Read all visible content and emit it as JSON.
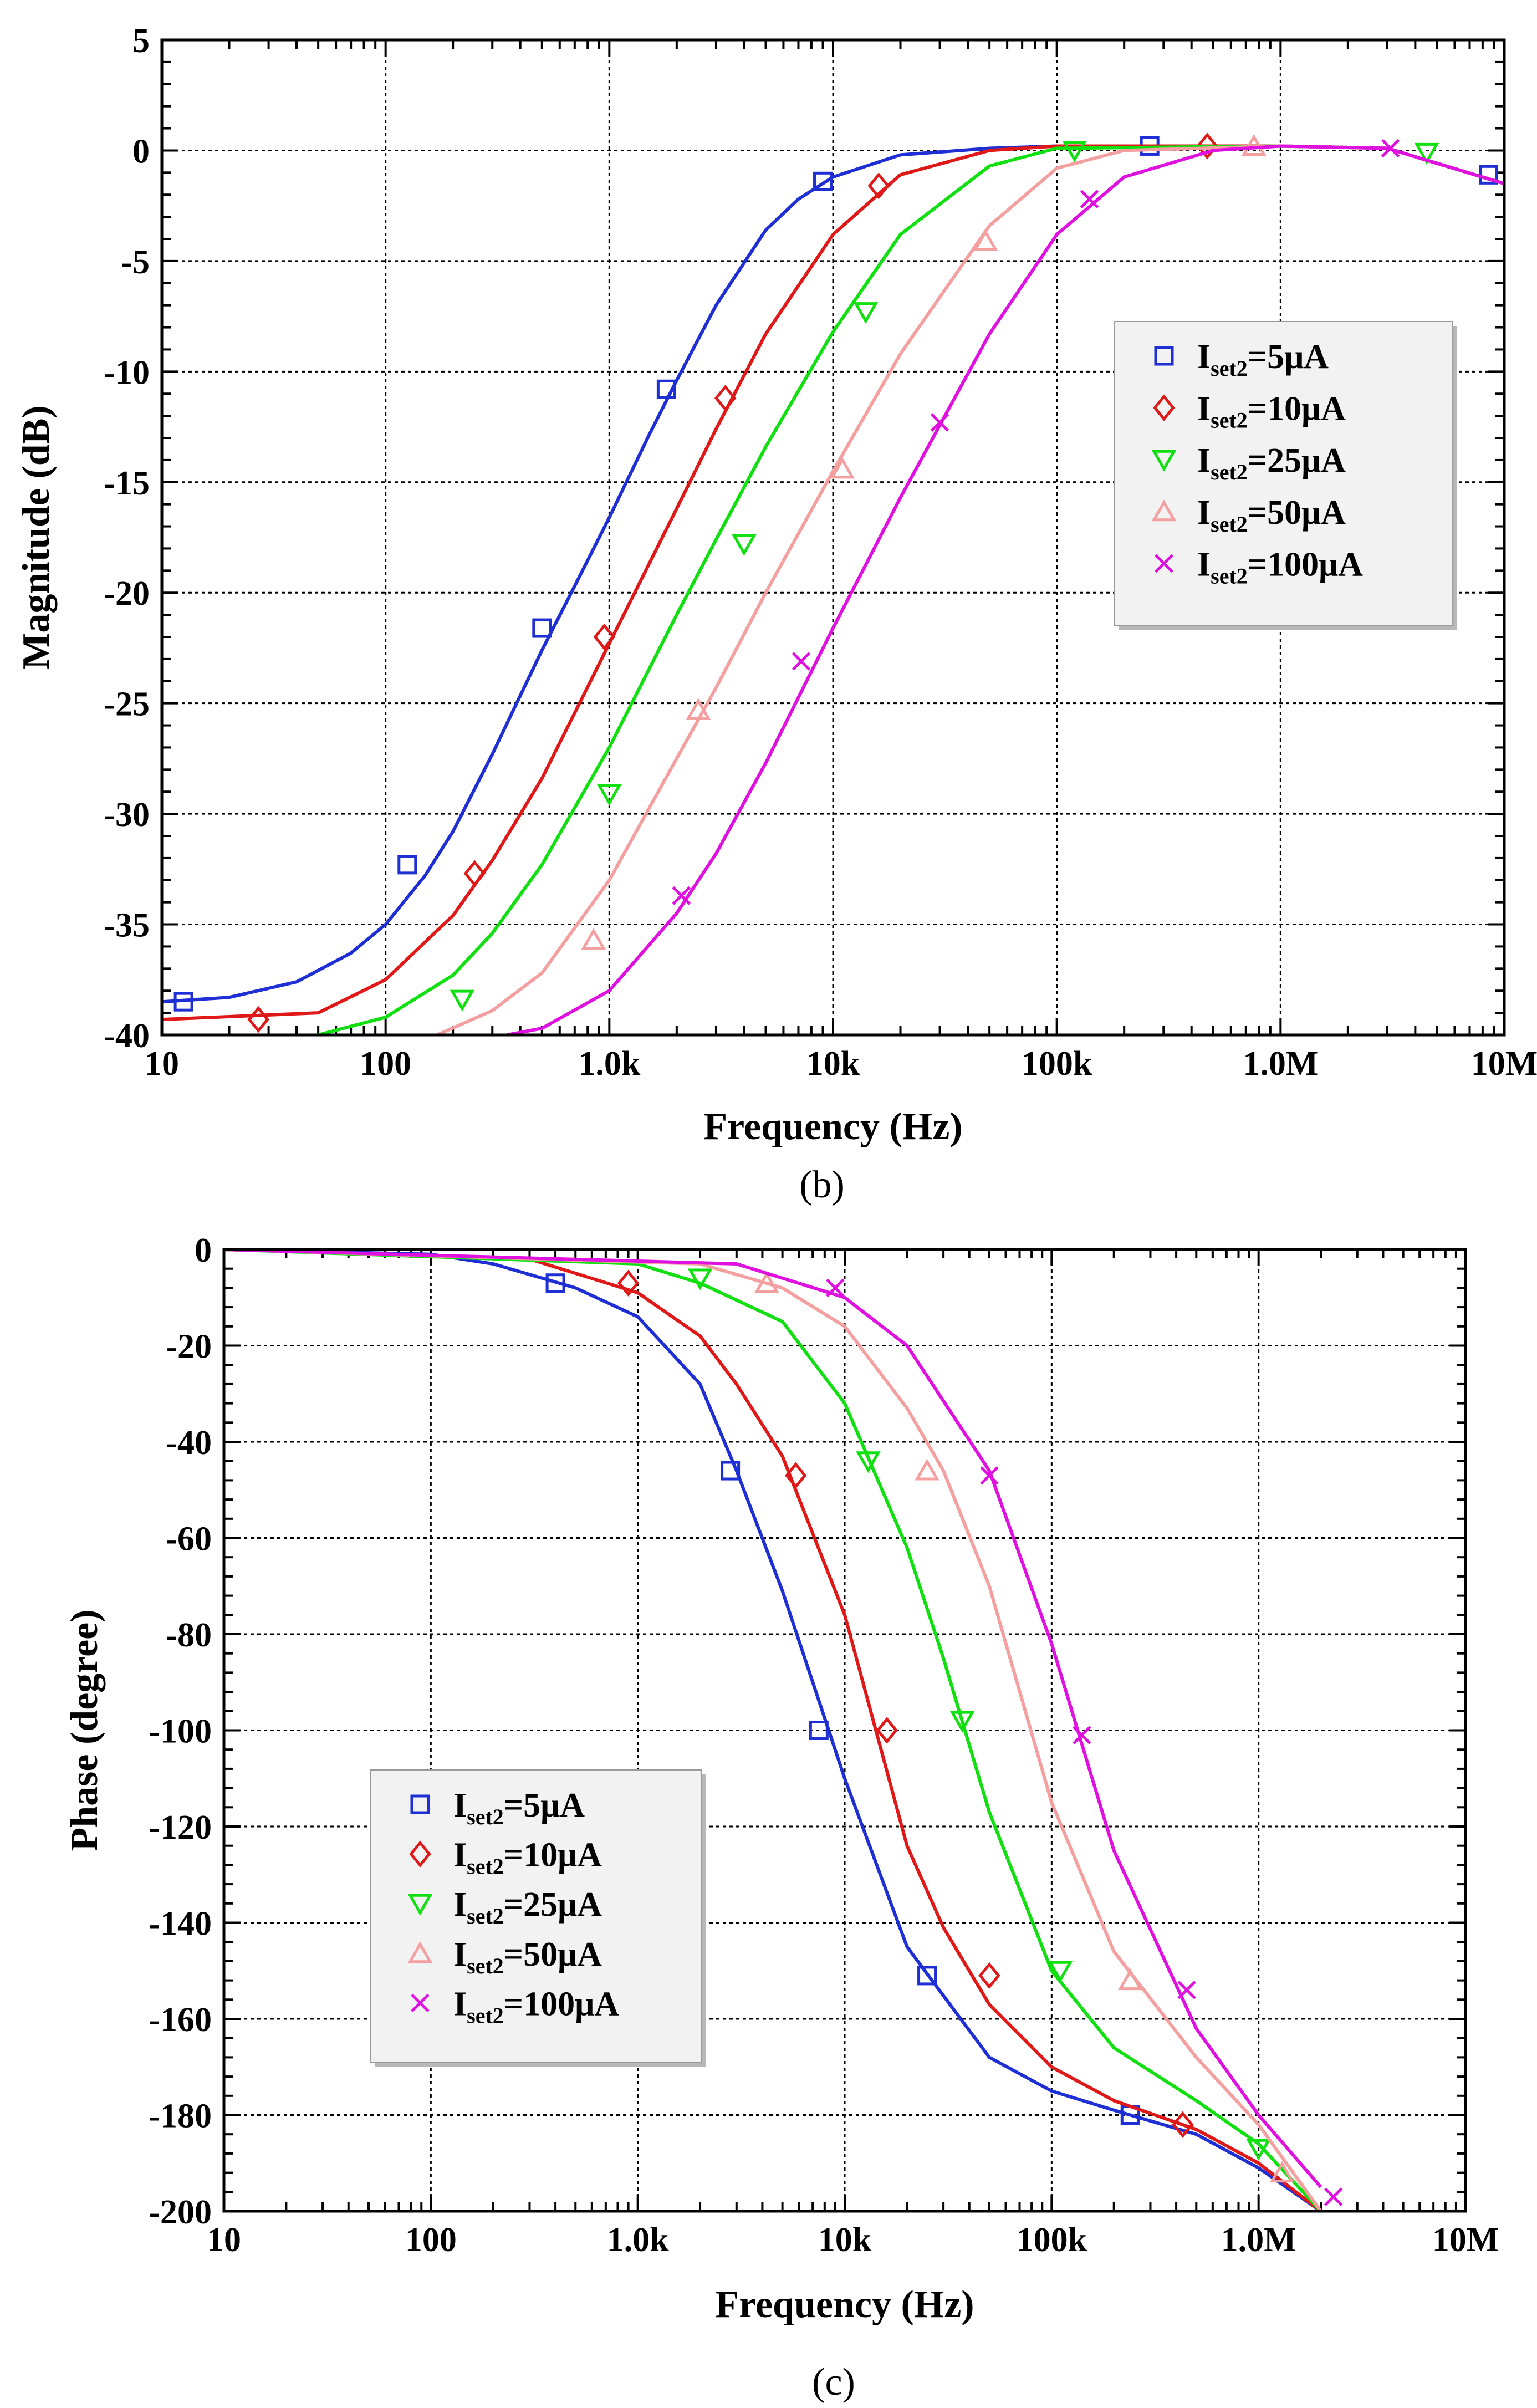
{
  "chart_data": [
    {
      "type": "line",
      "panel_label": "(b)",
      "xlabel": "Frequency (Hz)",
      "ylabel": "Magnitude (dB)",
      "xscale": "log",
      "xlim": [
        10,
        10000000
      ],
      "ylim": [
        -40,
        5
      ],
      "xticks": [
        10,
        100,
        1000,
        10000,
        100000,
        1000000,
        10000000
      ],
      "xtick_labels": [
        "10",
        "100",
        "1.0k",
        "10k",
        "100k",
        "1.0M",
        "10M"
      ],
      "yticks": [
        5,
        0,
        -5,
        -10,
        -15,
        -20,
        -25,
        -30,
        -35,
        -40
      ],
      "ytick_labels": [
        "5",
        "0",
        "-5",
        "-10",
        "-15",
        "-20",
        "-25",
        "-30",
        "-35",
        "-40"
      ],
      "grid": true,
      "legend_position": "right",
      "series": [
        {
          "name": "Iset2=5μA",
          "name_main": "I",
          "name_sub": "set2",
          "name_rest": "=5μA",
          "color": "#1f2fd6",
          "marker": "square",
          "x": [
            10,
            20,
            40,
            70,
            100,
            150,
            200,
            300,
            500,
            700,
            1000,
            1500,
            2000,
            3000,
            5000,
            7000,
            10000,
            20000,
            50000,
            100000,
            1000000,
            3000000,
            10000000
          ],
          "y": [
            -38.5,
            -38.3,
            -37.6,
            -36.3,
            -35.0,
            -32.8,
            -30.8,
            -27.3,
            -22.6,
            -19.7,
            -16.6,
            -12.9,
            -10.4,
            -7.0,
            -3.6,
            -2.2,
            -1.2,
            -0.2,
            0.1,
            0.2,
            0.2,
            0.1,
            -1.5
          ],
          "marker_x": [
            12.5,
            125,
            500,
            1800,
            9000,
            260000,
            8500000
          ],
          "marker_y": [
            -38.5,
            -32.3,
            -21.6,
            -10.8,
            -1.4,
            0.2,
            -1.1
          ]
        },
        {
          "name": "Iset2=10μA",
          "name_main": "I",
          "name_sub": "set2",
          "name_rest": "=10μA",
          "color": "#e01818",
          "marker": "diamond",
          "x": [
            10,
            50,
            100,
            200,
            300,
            500,
            1000,
            2000,
            3000,
            5000,
            10000,
            20000,
            50000,
            100000,
            1000000,
            3000000,
            10000000
          ],
          "y": [
            -39.3,
            -39.0,
            -37.5,
            -34.6,
            -32.1,
            -28.4,
            -22.3,
            -16.2,
            -12.6,
            -8.3,
            -3.8,
            -1.1,
            0.0,
            0.2,
            0.2,
            0.1,
            -1.5
          ],
          "marker_x": [
            27,
            250,
            950,
            3300,
            16000,
            470000
          ],
          "marker_y": [
            -39.3,
            -32.7,
            -22.0,
            -11.2,
            -1.6,
            0.2
          ]
        },
        {
          "name": "Iset2=25μA",
          "name_main": "I",
          "name_sub": "set2",
          "name_rest": "=25μA",
          "color": "#10e010",
          "marker": "triangle-down",
          "x": [
            50,
            100,
            200,
            300,
            500,
            1000,
            2000,
            3000,
            5000,
            10000,
            20000,
            50000,
            100000,
            1000000,
            3000000,
            10000000
          ],
          "y": [
            -40.0,
            -39.2,
            -37.3,
            -35.4,
            -32.3,
            -27.0,
            -21.0,
            -17.6,
            -13.4,
            -8.2,
            -3.8,
            -0.7,
            0.1,
            0.2,
            0.1,
            -1.5
          ],
          "marker_x": [
            220,
            1000,
            4000,
            14000,
            120000,
            4500000
          ],
          "marker_y": [
            -38.4,
            -29.1,
            -17.8,
            -7.3,
            0.0,
            -0.1
          ]
        },
        {
          "name": "Iset2=50μA",
          "name_main": "I",
          "name_sub": "set2",
          "name_rest": "=50μA",
          "color": "#f4a0a0",
          "marker": "triangle-up",
          "x": [
            170,
            300,
            500,
            1000,
            2000,
            3000,
            5000,
            10000,
            20000,
            50000,
            100000,
            200000,
            1000000,
            3000000,
            10000000
          ],
          "y": [
            -40.0,
            -38.9,
            -37.2,
            -33.0,
            -27.5,
            -24.3,
            -20.0,
            -14.5,
            -9.2,
            -3.4,
            -0.8,
            0.0,
            0.2,
            0.1,
            -1.5
          ],
          "marker_x": [
            850,
            2500,
            11000,
            48000,
            760000
          ],
          "marker_y": [
            -35.7,
            -25.3,
            -14.4,
            -4.1,
            0.2
          ]
        },
        {
          "name": "Iset2=100μA",
          "name_main": "I",
          "name_sub": "set2",
          "name_rest": "=100μA",
          "color": "#e010e0",
          "marker": "x",
          "x": [
            350,
            500,
            1000,
            2000,
            3000,
            5000,
            10000,
            20000,
            50000,
            100000,
            200000,
            500000,
            1000000,
            3000000,
            10000000
          ],
          "y": [
            -40.0,
            -39.7,
            -38.0,
            -34.5,
            -31.8,
            -27.7,
            -21.6,
            -15.7,
            -8.3,
            -3.8,
            -1.2,
            0.0,
            0.2,
            0.1,
            -1.5
          ],
          "marker_x": [
            2100,
            7200,
            30000,
            140000,
            3100000
          ],
          "marker_y": [
            -33.7,
            -23.1,
            -12.3,
            -2.2,
            0.1
          ]
        }
      ]
    },
    {
      "type": "line",
      "panel_label": "(c)",
      "xlabel": "Frequency (Hz)",
      "ylabel": "Phase (degree)",
      "xscale": "log",
      "xlim": [
        10,
        10000000
      ],
      "ylim": [
        -200,
        0
      ],
      "xticks": [
        10,
        100,
        1000,
        10000,
        100000,
        1000000,
        10000000
      ],
      "xtick_labels": [
        "10",
        "100",
        "1.0k",
        "10k",
        "100k",
        "1.0M",
        "10M"
      ],
      "yticks": [
        0,
        -20,
        -40,
        -60,
        -80,
        -100,
        -120,
        -140,
        -160,
        -180,
        -200
      ],
      "ytick_labels": [
        "0",
        "-20",
        "-40",
        "-60",
        "-80",
        "-100",
        "-120",
        "-140",
        "-160",
        "-180",
        "-200"
      ],
      "grid": true,
      "legend_position": "left",
      "series": [
        {
          "name": "Iset2=5μA",
          "name_main": "I",
          "name_sub": "set2",
          "name_rest": "=5μA",
          "color": "#1f2fd6",
          "marker": "square",
          "x": [
            10,
            100,
            200,
            500,
            1000,
            2000,
            3000,
            5000,
            10000,
            20000,
            50000,
            100000,
            200000,
            500000,
            1000000,
            2000000
          ],
          "y": [
            0,
            -1,
            -3,
            -8,
            -14,
            -28,
            -46,
            -71,
            -110,
            -145,
            -168,
            -175,
            -179,
            -184,
            -191,
            -200
          ],
          "marker_x": [
            400,
            2800,
            7500,
            25000,
            240000
          ],
          "marker_y": [
            -7,
            -46,
            -100,
            -151,
            -180
          ]
        },
        {
          "name": "Iset2=10μA",
          "name_main": "I",
          "name_sub": "set2",
          "name_rest": "=10μA",
          "color": "#e01818",
          "marker": "diamond",
          "x": [
            10,
            300,
            1000,
            2000,
            3000,
            5000,
            10000,
            20000,
            30000,
            50000,
            100000,
            200000,
            500000,
            1000000,
            2000000
          ],
          "y": [
            0,
            -2,
            -9,
            -18,
            -28,
            -43,
            -76,
            -124,
            -141,
            -157,
            -170,
            -177,
            -183,
            -190,
            -200
          ],
          "marker_x": [
            900,
            5800,
            16000,
            50000,
            430000
          ],
          "marker_y": [
            -7,
            -47,
            -100,
            -151,
            -182
          ]
        },
        {
          "name": "Iset2=25μA",
          "name_main": "I",
          "name_sub": "set2",
          "name_rest": "=25μA",
          "color": "#10e010",
          "marker": "triangle-down",
          "x": [
            10,
            1000,
            2000,
            5000,
            10000,
            20000,
            30000,
            50000,
            100000,
            200000,
            500000,
            1000000,
            2000000
          ],
          "y": [
            0,
            -3,
            -7,
            -15,
            -32,
            -62,
            -85,
            -117,
            -150,
            -166,
            -177,
            -186,
            -200
          ],
          "marker_x": [
            2000,
            13000,
            37000,
            110000,
            1000000
          ],
          "marker_y": [
            -6,
            -44,
            -98,
            -150,
            -187
          ]
        },
        {
          "name": "Iset2=50μA",
          "name_main": "I",
          "name_sub": "set2",
          "name_rest": "=50μA",
          "color": "#f4a0a0",
          "marker": "triangle-up",
          "x": [
            10,
            2000,
            5000,
            10000,
            20000,
            30000,
            50000,
            100000,
            200000,
            500000,
            1000000,
            2000000
          ],
          "y": [
            0,
            -3,
            -8,
            -16,
            -33,
            -46,
            -70,
            -115,
            -146,
            -168,
            -182,
            -200
          ],
          "marker_x": [
            4200,
            25000,
            240000,
            1300000
          ],
          "marker_y": [
            -7,
            -46,
            -152,
            -192
          ]
        },
        {
          "name": "Iset2=100μA",
          "name_main": "I",
          "name_sub": "set2",
          "name_rest": "=100μA",
          "color": "#e010e0",
          "marker": "x",
          "x": [
            10,
            3000,
            10000,
            20000,
            50000,
            100000,
            200000,
            500000,
            1000000,
            2000000
          ],
          "y": [
            0,
            -3,
            -10,
            -20,
            -46,
            -82,
            -125,
            -162,
            -180,
            -195
          ],
          "marker_x": [
            9000,
            50000,
            140000,
            450000,
            2300000
          ],
          "marker_y": [
            -8,
            -47,
            -101,
            -154,
            -197
          ]
        }
      ]
    }
  ]
}
